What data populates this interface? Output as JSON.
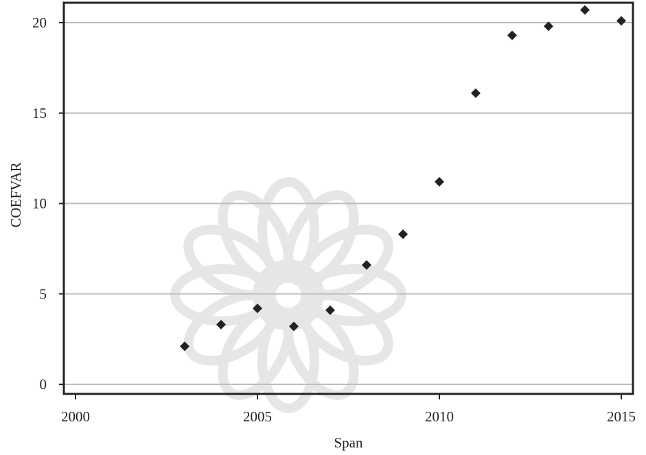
{
  "chart_data": {
    "type": "scatter",
    "xlabel": "Span",
    "ylabel": "COEFVAR",
    "xlim": [
      2000,
      2015
    ],
    "ylim": [
      0,
      20
    ],
    "x_ticks": [
      2000,
      2005,
      2010,
      2015
    ],
    "y_ticks": [
      0,
      5,
      10,
      15,
      20
    ],
    "grid": "horizontal",
    "points": [
      {
        "x": 2003,
        "y": 2.1
      },
      {
        "x": 2004,
        "y": 3.3
      },
      {
        "x": 2005,
        "y": 4.2
      },
      {
        "x": 2006,
        "y": 3.2
      },
      {
        "x": 2007,
        "y": 4.1
      },
      {
        "x": 2008,
        "y": 6.6
      },
      {
        "x": 2009,
        "y": 8.3
      },
      {
        "x": 2010,
        "y": 11.2
      },
      {
        "x": 2011,
        "y": 16.1
      },
      {
        "x": 2012,
        "y": 19.3
      },
      {
        "x": 2013,
        "y": 19.8
      },
      {
        "x": 2014,
        "y": 20.7
      },
      {
        "x": 2015,
        "y": 20.1
      }
    ],
    "marker_color": "#222222",
    "gridline_color": "#bdbdbd"
  }
}
